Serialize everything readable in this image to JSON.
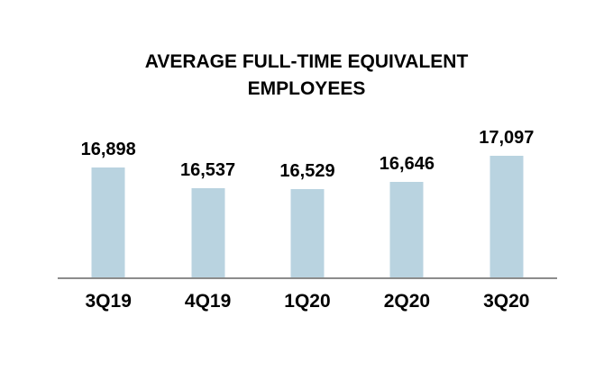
{
  "chart": {
    "title": "AVERAGE FULL-TIME EQUIVALENT EMPLOYEES"
  },
  "colors": {
    "bar_fill": "#B9D3E0",
    "axis_line": "#8C8C8C",
    "text": "#000000",
    "background": "#FFFFFF"
  },
  "chart_data": {
    "type": "bar",
    "title": "AVERAGE FULL-TIME EQUIVALENT EMPLOYEES",
    "categories": [
      "3Q19",
      "4Q19",
      "1Q20",
      "2Q20",
      "3Q20"
    ],
    "values": [
      16898,
      16537,
      16529,
      16646,
      17097
    ],
    "value_labels": [
      "16,898",
      "16,537",
      "16,529",
      "16,646",
      "17,097"
    ],
    "xlabel": "",
    "ylabel": "",
    "ylim": [
      15000,
      17500
    ],
    "grid": false,
    "y_axis_visible": false,
    "legend": "none",
    "data_labels": "above-bars"
  }
}
